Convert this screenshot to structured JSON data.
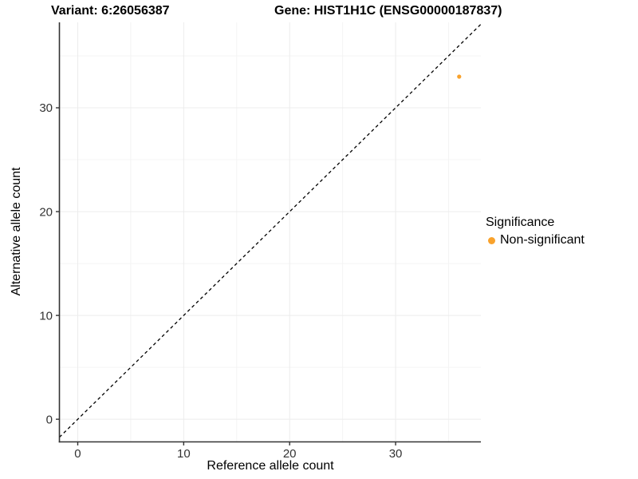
{
  "chart_data": {
    "type": "scatter",
    "title_left": "Variant: 6:26056387",
    "title_right": "Gene: HIST1H1C (ENSG00000187837)",
    "xlabel": "Reference allele count",
    "ylabel": "Alternative allele count",
    "xlim": [
      -1.73,
      38.05
    ],
    "ylim": [
      -2.18,
      38.23
    ],
    "x_major_ticks": [
      0,
      10,
      20,
      30
    ],
    "y_major_ticks": [
      0,
      10,
      20,
      30
    ],
    "x_minor_ticks": [
      5,
      15,
      25,
      35
    ],
    "y_minor_ticks": [
      5,
      15,
      25,
      35
    ],
    "grid": true,
    "points": [
      {
        "x": 36,
        "y": 33,
        "series": "Non-significant"
      }
    ],
    "identity_line": {
      "slope": 1,
      "intercept": 0,
      "style": "dashed",
      "color": "#000000"
    },
    "legend": {
      "title": "Significance",
      "position": "right",
      "items": [
        {
          "label": "Non-significant",
          "color": "#F9A22C"
        }
      ]
    },
    "colors": {
      "point": "#F9A22C",
      "axis": "#333333",
      "tick_text": "#333333",
      "grid_major": "#ECECEC",
      "grid_minor": "#F4F4F4",
      "background": "#FFFFFF"
    }
  }
}
